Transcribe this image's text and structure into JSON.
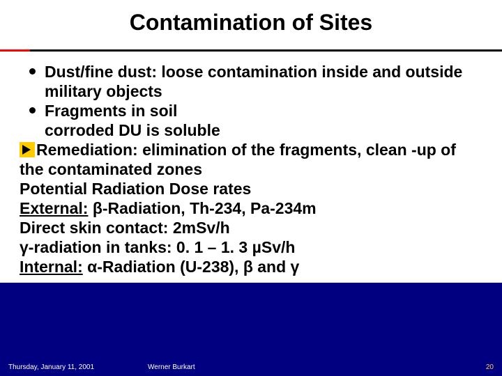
{
  "title": "Contamination of Sites",
  "bullets": [
    "Dust/fine dust: loose contamination inside and outside military objects",
    "Fragments in soil"
  ],
  "sub_line": "corroded DU is soluble",
  "arrow_line": "Remediation: elimination of the fragments, clean -up of the contaminated zones",
  "lines": {
    "l1": "Potential Radiation Dose rates",
    "l2a": "External:",
    "l2b": " β-Radiation, Th-234, Pa-234m",
    "l3": "Direct skin contact:    2mSv/h",
    "l4": "γ-radiation in tanks:   0. 1 – 1. 3 µSv/h",
    "l5a": "Internal:",
    "l5b": " α-Radiation (U-238), β and γ"
  },
  "footer": {
    "date": "Thursday, January 11, 2001",
    "author": "Werner Burkart",
    "page": "20"
  },
  "colors": {
    "bg": "#000080",
    "paper": "#ffffff",
    "text": "#000000",
    "accent": "#ff0000",
    "arrow_bg": "#ffcc00",
    "pagenum": "#ffcc66"
  }
}
